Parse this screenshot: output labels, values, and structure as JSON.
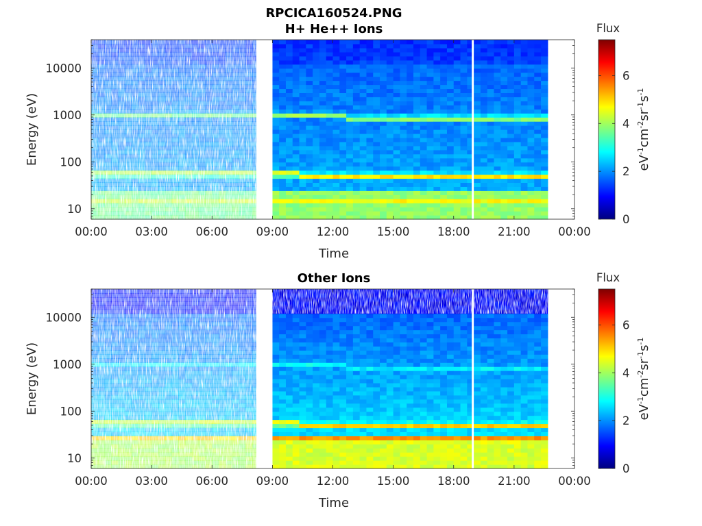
{
  "figure_title": "RPCICA160524.PNG",
  "colormap": [
    "#00007f",
    "#0000ff",
    "#007fff",
    "#00ffff",
    "#7fff7f",
    "#ffff00",
    "#ff7f00",
    "#ff0000",
    "#7f0000"
  ],
  "chart_data": [
    {
      "type": "heatmap",
      "title": "H+ He++ Ions",
      "xlabel": "Time",
      "ylabel": "Energy (eV)",
      "x_tick_labels": [
        "00:00",
        "03:00",
        "06:00",
        "09:00",
        "12:00",
        "15:00",
        "18:00",
        "21:00",
        "00:00"
      ],
      "x_range_hours": [
        0,
        24
      ],
      "y_scale": "log",
      "y_tick_labels": [
        "10",
        "100",
        "1000",
        "10000"
      ],
      "y_range_eV": [
        6,
        40000
      ],
      "data_gaps_hours": [
        [
          8.2,
          9.0
        ],
        [
          18.9,
          19.0
        ],
        [
          22.7,
          24
        ]
      ],
      "colorbar": {
        "title": "Flux",
        "label": "eV-1cm-2sr-1s-1",
        "range": [
          0,
          7.5
        ],
        "tick_labels": [
          "0",
          "2",
          "4",
          "6"
        ]
      },
      "bands": [
        {
          "energy_eV": 1000,
          "flux": 3.4
        },
        {
          "energy_eV": 50,
          "flux": 4.2
        },
        {
          "energy_eV": 15,
          "flux": 4.0
        }
      ]
    },
    {
      "type": "heatmap",
      "title": "Other Ions",
      "xlabel": "Time",
      "ylabel": "Energy (eV)",
      "x_tick_labels": [
        "00:00",
        "03:00",
        "06:00",
        "09:00",
        "12:00",
        "15:00",
        "18:00",
        "21:00",
        "00:00"
      ],
      "x_range_hours": [
        0,
        24
      ],
      "y_scale": "log",
      "y_tick_labels": [
        "10",
        "100",
        "1000",
        "10000"
      ],
      "y_range_eV": [
        6,
        40000
      ],
      "data_gaps_hours": [
        [
          8.2,
          9.0
        ],
        [
          18.9,
          19.0
        ],
        [
          22.7,
          24
        ]
      ],
      "colorbar": {
        "title": "Flux",
        "label": "eV-1cm-2sr-1s-1",
        "range": [
          0,
          7.5
        ],
        "tick_labels": [
          "0",
          "2",
          "4",
          "6"
        ]
      },
      "bands": [
        {
          "energy_eV": 1000,
          "flux": 2.2
        },
        {
          "energy_eV": 50,
          "flux": 4.4
        },
        {
          "energy_eV": 25,
          "flux": 5.3
        }
      ]
    }
  ]
}
